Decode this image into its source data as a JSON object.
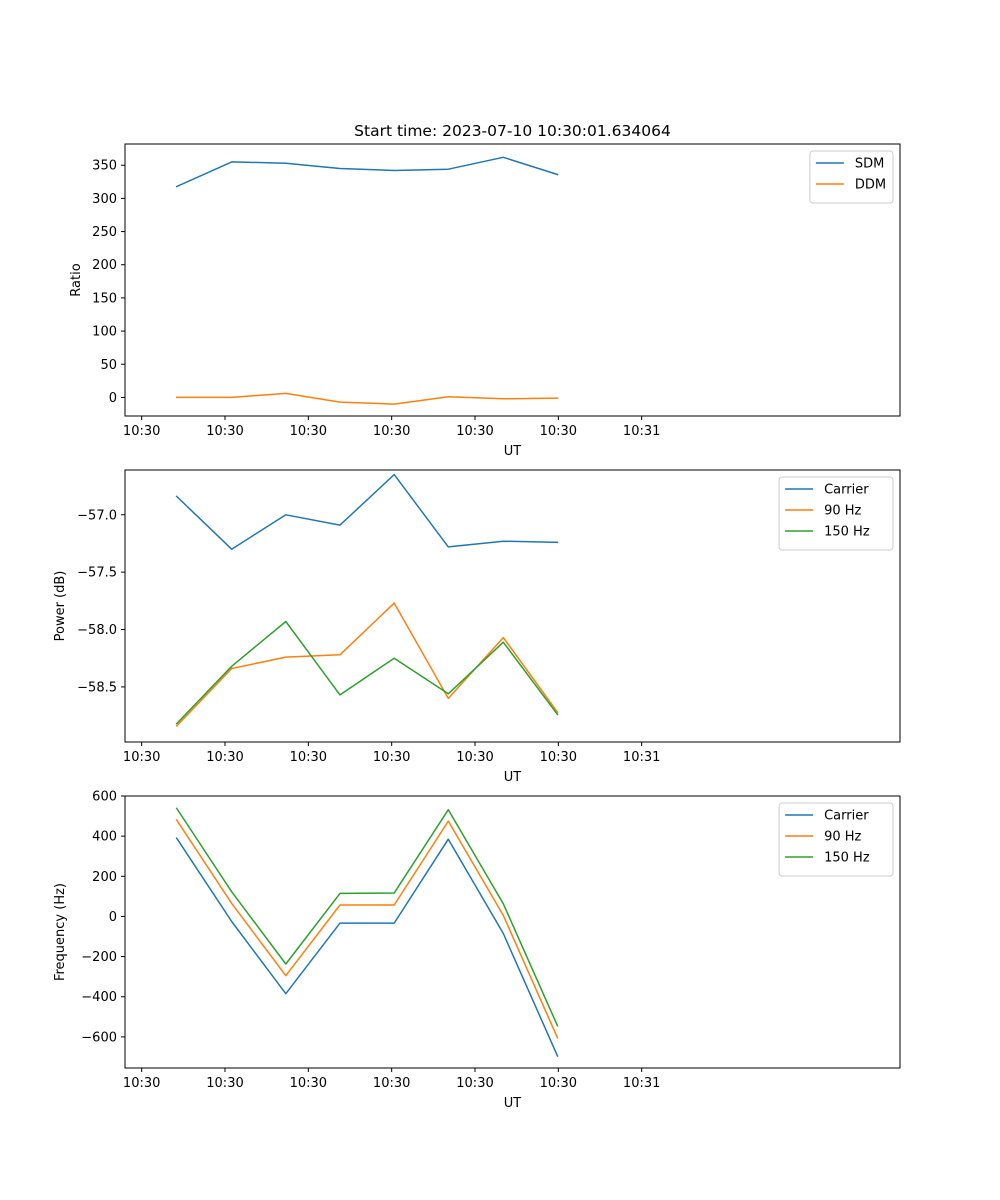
{
  "figure_title": "Start time: 2023-07-10 10:30:01.634064",
  "chart_data": [
    {
      "type": "line",
      "title": "Start time: 2023-07-10 10:30:01.634064",
      "xlabel": "UT",
      "ylabel": "Ratio",
      "xlim": [
        -0.2,
        9.1
      ],
      "ylim": [
        -28,
        382
      ],
      "x_ticks": [
        0,
        1,
        2,
        3,
        4,
        5,
        6
      ],
      "x_tick_labels": [
        "10:30",
        "10:30",
        "10:30",
        "10:30",
        "10:30",
        "10:30",
        "10:31"
      ],
      "y_ticks": [
        0,
        50,
        100,
        150,
        200,
        250,
        300,
        350
      ],
      "y_tick_labels": [
        "0",
        "50",
        "100",
        "150",
        "200",
        "250",
        "300",
        "350"
      ],
      "x": [
        0.42,
        1.08,
        1.73,
        2.38,
        3.03,
        3.68,
        4.34,
        4.99
      ],
      "series": [
        {
          "name": "SDM",
          "color": "#1f77b4",
          "values": [
            318,
            355,
            353,
            345,
            342,
            344,
            362,
            336
          ]
        },
        {
          "name": "DDM",
          "color": "#ff7f0e",
          "values": [
            0,
            0,
            6,
            -7,
            -10,
            1,
            -2,
            -1
          ]
        }
      ],
      "legend": "top-right"
    },
    {
      "type": "line",
      "title": "",
      "xlabel": "UT",
      "ylabel": "Power (dB)",
      "xlim": [
        -0.2,
        9.1
      ],
      "ylim": [
        -58.98,
        -56.61
      ],
      "x_ticks": [
        0,
        1,
        2,
        3,
        4,
        5,
        6
      ],
      "x_tick_labels": [
        "10:30",
        "10:30",
        "10:30",
        "10:30",
        "10:30",
        "10:30",
        "10:31"
      ],
      "y_ticks": [
        -58.5,
        -58.0,
        -57.5,
        -57.0
      ],
      "y_tick_labels": [
        "−58.5",
        "−58.0",
        "−57.5",
        "−57.0"
      ],
      "x": [
        0.42,
        1.08,
        1.73,
        2.38,
        3.03,
        3.68,
        4.34,
        4.99
      ],
      "series": [
        {
          "name": "Carrier",
          "color": "#1f77b4",
          "values": [
            -56.84,
            -57.3,
            -57.0,
            -57.09,
            -56.65,
            -57.28,
            -57.23,
            -57.24
          ]
        },
        {
          "name": "90 Hz",
          "color": "#ff7f0e",
          "values": [
            -58.84,
            -58.34,
            -58.24,
            -58.22,
            -57.77,
            -58.6,
            -58.07,
            -58.72
          ]
        },
        {
          "name": "150 Hz",
          "color": "#2ca02c",
          "values": [
            -58.82,
            -58.32,
            -57.93,
            -58.57,
            -58.25,
            -58.56,
            -58.11,
            -58.74
          ]
        }
      ],
      "legend": "top-right"
    },
    {
      "type": "line",
      "title": "",
      "xlabel": "UT",
      "ylabel": "Frequency (Hz)",
      "xlim": [
        -0.2,
        9.1
      ],
      "ylim": [
        -755,
        600
      ],
      "x_ticks": [
        0,
        1,
        2,
        3,
        4,
        5,
        6
      ],
      "x_tick_labels": [
        "10:30",
        "10:30",
        "10:30",
        "10:30",
        "10:30",
        "10:30",
        "10:31"
      ],
      "y_ticks": [
        -600,
        -400,
        -200,
        0,
        200,
        400,
        600
      ],
      "y_tick_labels": [
        "−600",
        "−400",
        "−200",
        "0",
        "200",
        "400",
        "600"
      ],
      "x": [
        0.42,
        1.08,
        1.73,
        2.38,
        3.03,
        3.68,
        4.34,
        4.99
      ],
      "series": [
        {
          "name": "Carrier",
          "color": "#1f77b4",
          "values": [
            390,
            -25,
            -385,
            -33,
            -33,
            385,
            -85,
            -695
          ]
        },
        {
          "name": "90 Hz",
          "color": "#ff7f0e",
          "values": [
            480,
            65,
            -295,
            57,
            57,
            475,
            5,
            -605
          ]
        },
        {
          "name": "150 Hz",
          "color": "#2ca02c",
          "values": [
            538,
            123,
            -237,
            115,
            117,
            532,
            63,
            -545
          ]
        }
      ],
      "legend": "top-right"
    }
  ]
}
